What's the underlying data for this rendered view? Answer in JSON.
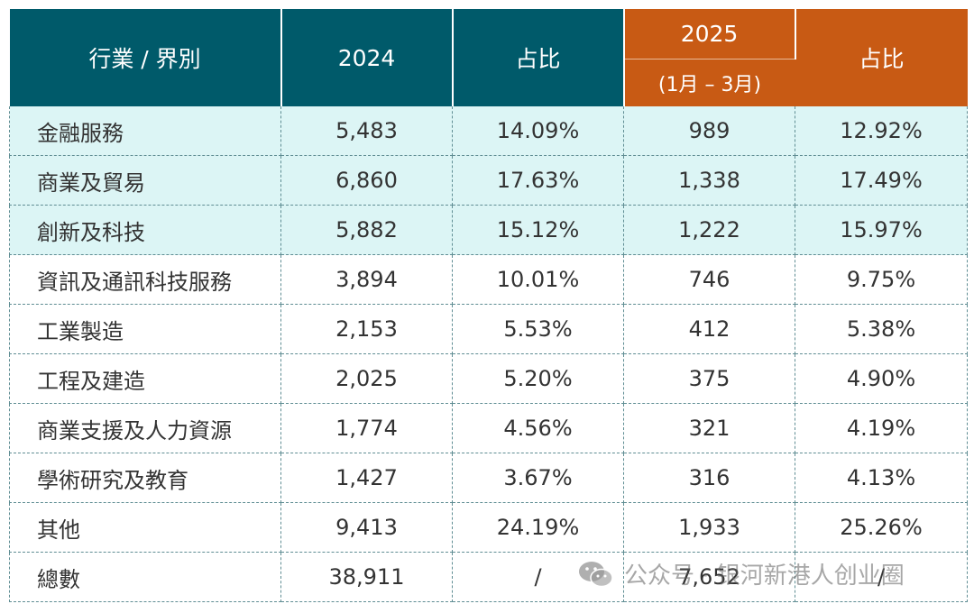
{
  "header": {
    "col1": "行業 / 界別",
    "col2": "2024",
    "col3": "占比",
    "col4_year": "2025",
    "col4_period": "(1月 – 3月)",
    "col5": "占比"
  },
  "rows": [
    {
      "name": "金融服務",
      "v2024": "5,483",
      "p2024": "14.09%",
      "v2025": "989",
      "p2025": "12.92%"
    },
    {
      "name": "商業及貿易",
      "v2024": "6,860",
      "p2024": "17.63%",
      "v2025": "1,338",
      "p2025": "17.49%"
    },
    {
      "name": "創新及科技",
      "v2024": "5,882",
      "p2024": "15.12%",
      "v2025": "1,222",
      "p2025": "15.97%"
    },
    {
      "name": "資訊及通訊科技服務",
      "v2024": "3,894",
      "p2024": "10.01%",
      "v2025": "746",
      "p2025": "9.75%"
    },
    {
      "name": "工業製造",
      "v2024": "2,153",
      "p2024": "5.53%",
      "v2025": "412",
      "p2025": "5.38%"
    },
    {
      "name": "工程及建造",
      "v2024": "2,025",
      "p2024": "5.20%",
      "v2025": "375",
      "p2025": "4.90%"
    },
    {
      "name": "商業支援及人力資源",
      "v2024": "1,774",
      "p2024": "4.56%",
      "v2025": "321",
      "p2025": "4.19%"
    },
    {
      "name": "學術研究及教育",
      "v2024": "1,427",
      "p2024": "3.67%",
      "v2025": "316",
      "p2025": "4.13%"
    },
    {
      "name": "其他",
      "v2024": "9,413",
      "p2024": "24.19%",
      "v2025": "1,933",
      "p2025": "25.26%"
    },
    {
      "name": "總數",
      "v2024": "38,911",
      "p2024": "/",
      "v2025": "7,652",
      "p2025": "/"
    }
  ],
  "watermark": {
    "text": "公众号 · 银河新港人创业圈",
    "icon": "wechat-icon"
  },
  "colors": {
    "header_teal": "#005a6a",
    "header_orange": "#c85a14",
    "highlight_row": "#dcf5f5"
  }
}
